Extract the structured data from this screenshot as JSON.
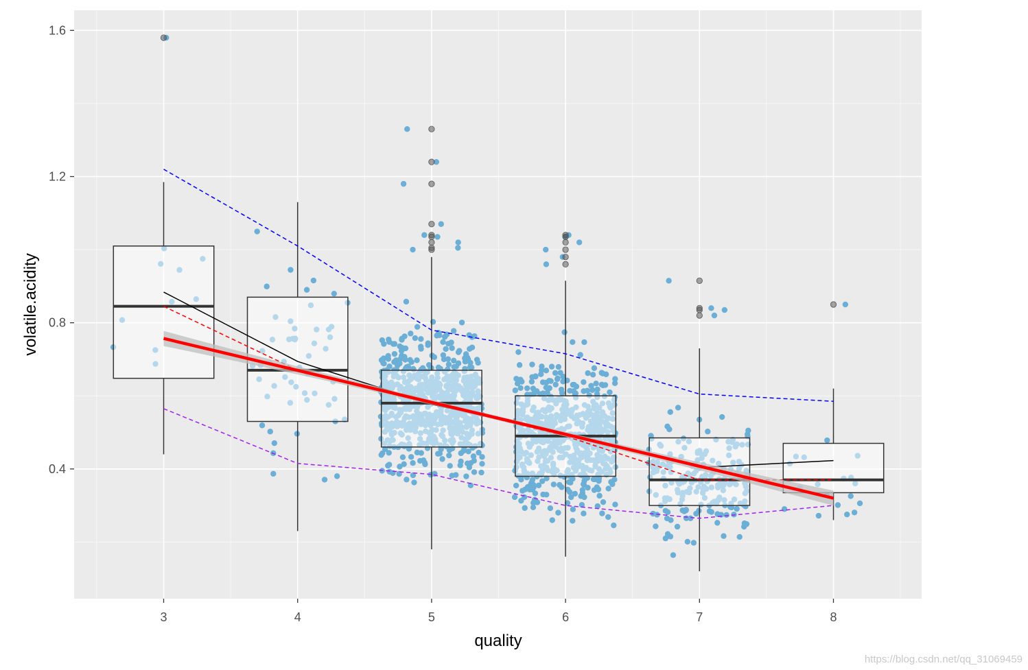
{
  "chart_data": {
    "type": "box",
    "title": "",
    "xlabel": "quality",
    "ylabel": "volatile.acidity",
    "categories": [
      "3",
      "4",
      "5",
      "6",
      "7",
      "8"
    ],
    "xlim": [
      2.5,
      8.65
    ],
    "ylim": [
      0.045,
      1.655
    ],
    "yticks": [
      0.4,
      0.8,
      1.2,
      1.6
    ],
    "ytick_labels": [
      "0.4",
      "0.8",
      "1.2",
      "1.6"
    ],
    "grid": true,
    "boxes": [
      {
        "category": "3",
        "q1": 0.648,
        "median": 0.845,
        "q3": 1.01,
        "whisker_low": 0.44,
        "whisker_high": 1.185,
        "outliers": [
          1.58
        ]
      },
      {
        "category": "4",
        "q1": 0.53,
        "median": 0.67,
        "q3": 0.87,
        "whisker_low": 0.23,
        "whisker_high": 1.13,
        "outliers": []
      },
      {
        "category": "5",
        "q1": 0.46,
        "median": 0.58,
        "q3": 0.67,
        "whisker_low": 0.18,
        "whisker_high": 0.98,
        "outliers": [
          1.0,
          1.005,
          1.02,
          1.035,
          1.04,
          1.07,
          1.18,
          1.24,
          1.33
        ]
      },
      {
        "category": "6",
        "q1": 0.38,
        "median": 0.49,
        "q3": 0.6,
        "whisker_low": 0.16,
        "whisker_high": 0.915,
        "outliers": [
          0.96,
          0.98,
          1.0,
          1.02,
          1.035,
          1.04
        ]
      },
      {
        "category": "7",
        "q1": 0.3,
        "median": 0.37,
        "q3": 0.485,
        "whisker_low": 0.12,
        "whisker_high": 0.73,
        "outliers": [
          0.82,
          0.835,
          0.84,
          0.915
        ]
      },
      {
        "category": "8",
        "q1": 0.335,
        "median": 0.37,
        "q3": 0.47,
        "whisker_low": 0.26,
        "whisker_high": 0.62,
        "outliers": [
          0.85
        ]
      }
    ],
    "points": {
      "color": "#6baed6",
      "counts": [
        10,
        53,
        681,
        638,
        199,
        18
      ]
    },
    "lines": [
      {
        "style": "solid",
        "color": "#000000",
        "x": [
          3,
          4,
          5,
          6,
          7,
          8
        ],
        "y": [
          0.884,
          0.694,
          0.577,
          0.497,
          0.404,
          0.423
        ]
      },
      {
        "style": "dashed",
        "color": "#0000ff",
        "x": [
          3,
          4,
          5,
          6,
          7,
          8
        ],
        "y": [
          1.22,
          1.01,
          0.78,
          0.715,
          0.605,
          0.585
        ]
      },
      {
        "style": "dashed",
        "color": "#ff0000",
        "x": [
          3,
          4,
          5,
          6,
          7,
          8
        ],
        "y": [
          0.845,
          0.67,
          0.58,
          0.49,
          0.37,
          0.37
        ]
      },
      {
        "style": "dashed",
        "color": "#a020f0",
        "x": [
          3,
          4,
          5,
          6,
          7,
          8
        ],
        "y": [
          0.565,
          0.415,
          0.385,
          0.3,
          0.265,
          0.3
        ]
      }
    ],
    "trend": {
      "color": "#ff0000",
      "x": [
        3,
        8
      ],
      "y": [
        0.757,
        0.32
      ],
      "band_color": "#bdbdbd"
    },
    "watermark": "https://blog.csdn.net/qq_31069459"
  }
}
